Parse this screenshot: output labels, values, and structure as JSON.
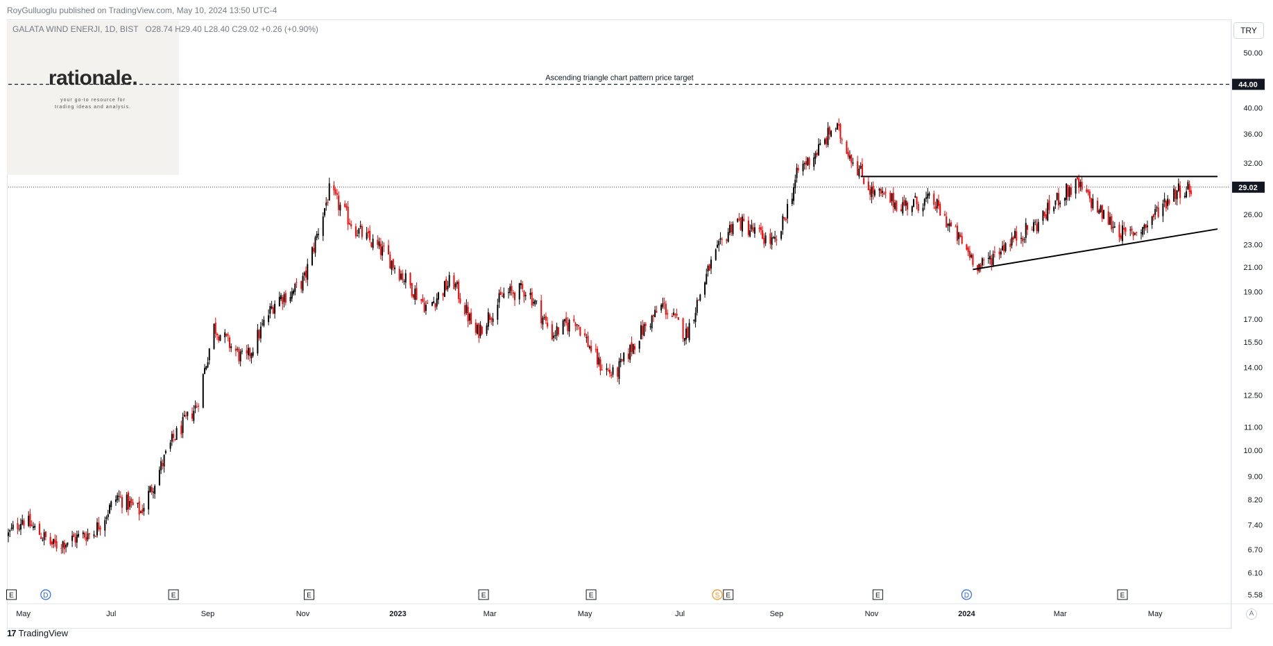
{
  "header": {
    "published_line": "RoyGulluoglu published on TradingView.com, May 10, 2024 13:50 UTC-4",
    "symbol": "GALATA WIND ENERJI, 1D, BIST",
    "ohlc": "O28.74  H29.40  L28.40  C29.02  +0.26 (+0.90%)"
  },
  "logo": {
    "title": "rationale.",
    "tagline": "your go-to resource for trading ideas and analysis."
  },
  "toolbar": {
    "currency": "TRY",
    "auto_label": "A"
  },
  "footer": {
    "brand": "TradingView",
    "brand_mark": "17"
  },
  "colors": {
    "up": "#000000",
    "down": "#ff0000",
    "price_line": "#131722",
    "badge_bg": "#131722",
    "badge_text": "#ffffff"
  },
  "chart_data": {
    "type": "candlestick",
    "title": "",
    "y_scale": "log",
    "ylim": [
      5.0,
      55.0
    ],
    "y_ticks": [
      "50.00",
      "40.00",
      "36.00",
      "32.00",
      "26.00",
      "23.00",
      "21.00",
      "19.00",
      "17.00",
      "15.50",
      "14.00",
      "12.50",
      "11.00",
      "10.00",
      "9.00",
      "8.20",
      "7.40",
      "6.70",
      "6.10",
      "5.58"
    ],
    "x_ticks": [
      "May",
      "Jul",
      "Sep",
      "Nov",
      "2023",
      "Mar",
      "May",
      "Jul",
      "Sep",
      "Nov",
      "2024",
      "Mar",
      "May"
    ],
    "x_tick_dates": [
      "2022-05-01",
      "2022-07-01",
      "2022-09-01",
      "2022-11-01",
      "2023-01-01",
      "2023-03-01",
      "2023-05-01",
      "2023-07-01",
      "2023-09-01",
      "2023-11-01",
      "2024-01-01",
      "2024-03-01",
      "2024-05-01"
    ],
    "x_range": [
      "2022-04-26",
      "2024-06-18"
    ],
    "last_price": 29.02,
    "last_price_label": "29.02",
    "target_price": 44.0,
    "target_label": "44.00",
    "annotation": "Ascending triangle chart pattern price target",
    "price_path": [
      [
        "2022-04-26",
        7.1
      ],
      [
        "2022-05-05",
        7.6
      ],
      [
        "2022-05-25",
        6.8
      ],
      [
        "2022-06-20",
        7.2
      ],
      [
        "2022-07-05",
        8.3
      ],
      [
        "2022-07-20",
        7.8
      ],
      [
        "2022-08-10",
        10.5
      ],
      [
        "2022-08-25",
        12.0
      ],
      [
        "2022-09-05",
        16.5
      ],
      [
        "2022-09-25",
        14.3
      ],
      [
        "2022-10-15",
        18.5
      ],
      [
        "2022-10-25",
        18.9
      ],
      [
        "2022-11-02",
        20.0
      ],
      [
        "2022-11-18",
        28.5
      ],
      [
        "2022-12-05",
        24.5
      ],
      [
        "2022-12-25",
        22.0
      ],
      [
        "2023-01-20",
        17.8
      ],
      [
        "2023-02-05",
        20.0
      ],
      [
        "2023-02-20",
        16.0
      ],
      [
        "2023-03-10",
        18.8
      ],
      [
        "2023-03-25",
        19.2
      ],
      [
        "2023-04-10",
        16.0
      ],
      [
        "2023-04-25",
        17.0
      ],
      [
        "2023-05-10",
        14.2
      ],
      [
        "2023-05-20",
        13.5
      ],
      [
        "2023-06-05",
        16.0
      ],
      [
        "2023-06-20",
        18.0
      ],
      [
        "2023-07-05",
        16.0
      ],
      [
        "2023-07-20",
        21.0
      ],
      [
        "2023-08-05",
        25.5
      ],
      [
        "2023-08-20",
        24.0
      ],
      [
        "2023-09-01",
        23.0
      ],
      [
        "2023-09-15",
        31.0
      ],
      [
        "2023-10-01",
        34.5
      ],
      [
        "2023-10-08",
        37.5
      ],
      [
        "2023-10-20",
        32.5
      ],
      [
        "2023-11-01",
        28.5
      ],
      [
        "2023-11-20",
        27.0
      ],
      [
        "2023-12-10",
        27.5
      ],
      [
        "2024-01-01",
        22.5
      ],
      [
        "2024-01-10",
        21.0
      ],
      [
        "2024-01-25",
        23.0
      ],
      [
        "2024-02-15",
        25.0
      ],
      [
        "2024-03-01",
        28.0
      ],
      [
        "2024-03-12",
        29.3
      ],
      [
        "2024-03-28",
        26.0
      ],
      [
        "2024-04-12",
        23.8
      ],
      [
        "2024-04-25",
        24.8
      ],
      [
        "2024-05-05",
        27.0
      ],
      [
        "2024-05-15",
        28.7
      ],
      [
        "2024-05-25",
        29.02
      ]
    ],
    "trendlines": [
      {
        "name": "resistance",
        "from": [
          "2023-10-25",
          30.3
        ],
        "to": [
          "2024-06-10",
          30.3
        ]
      },
      {
        "name": "support",
        "from": [
          "2024-01-05",
          20.8
        ],
        "to": [
          "2024-06-10",
          24.5
        ]
      }
    ],
    "events": [
      {
        "label": "E",
        "date": "2022-04-28",
        "color": "#131722"
      },
      {
        "label": "D",
        "date": "2022-05-20",
        "color": "#2962ff"
      },
      {
        "label": "E",
        "date": "2022-08-10",
        "color": "#131722"
      },
      {
        "label": "E",
        "date": "2022-11-05",
        "color": "#131722"
      },
      {
        "label": "E",
        "date": "2023-02-25",
        "color": "#131722"
      },
      {
        "label": "E",
        "date": "2023-05-05",
        "color": "#131722"
      },
      {
        "label": "S",
        "date": "2023-07-25",
        "color": "#f7931a"
      },
      {
        "label": "E",
        "date": "2023-08-01",
        "color": "#131722"
      },
      {
        "label": "E",
        "date": "2023-11-05",
        "color": "#131722"
      },
      {
        "label": "D",
        "date": "2024-01-01",
        "color": "#2962ff"
      },
      {
        "label": "E",
        "date": "2024-04-10",
        "color": "#131722"
      }
    ]
  }
}
